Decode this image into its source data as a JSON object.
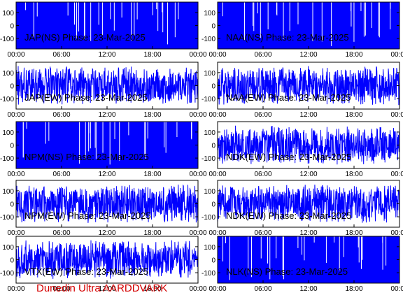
{
  "footer": "Dunedin Ultra AARDDVARK",
  "colors": {
    "trace": "#0000ff",
    "axis": "#000000",
    "footer": "#d40000"
  },
  "chart_data": [
    {
      "type": "line",
      "title": "JAP(NS) Phase: 23-Mar-2025",
      "yticks": [
        100,
        0,
        -100
      ],
      "ylim": [
        -180,
        180
      ],
      "xticks": [
        "00:00",
        "06:00",
        "12:00",
        "18:00",
        "00:00"
      ],
      "xlim_hours": [
        0,
        24
      ],
      "fill": "solid",
      "seed": 11
    },
    {
      "type": "line",
      "title": "NAA(NS) Phase: 23-Mar-2025",
      "yticks": [
        100,
        0,
        -100
      ],
      "ylim": [
        -180,
        180
      ],
      "xticks": [
        "00:00",
        "06:00",
        "12:00",
        "18:00",
        "00:00"
      ],
      "xlim_hours": [
        0,
        24
      ],
      "fill": "solid",
      "seed": 12
    },
    {
      "type": "line",
      "title": "JAP(EW) Phase: 23-Mar-2025",
      "yticks": [
        100,
        0,
        -100
      ],
      "ylim": [
        -180,
        180
      ],
      "xticks": [
        "00:00",
        "06:00",
        "12:00",
        "18:00",
        "00:00"
      ],
      "xlim_hours": [
        0,
        24
      ],
      "fill": "noisy",
      "seed": 21
    },
    {
      "type": "line",
      "title": "NAA(EW) Phase: 23-Mar-2025",
      "yticks": [
        100,
        0,
        -100
      ],
      "ylim": [
        -180,
        180
      ],
      "xticks": [
        "00:00",
        "06:00",
        "12:00",
        "18:00",
        "00:00"
      ],
      "xlim_hours": [
        0,
        24
      ],
      "fill": "noisy",
      "seed": 22
    },
    {
      "type": "line",
      "title": "NPM(NS) Phase: 23-Mar-2025",
      "yticks": [
        100,
        0,
        -100
      ],
      "ylim": [
        -180,
        180
      ],
      "xticks": [
        "00:00",
        "06:00",
        "12:00",
        "18:00",
        "00:00"
      ],
      "xlim_hours": [
        0,
        24
      ],
      "fill": "solid",
      "seed": 31
    },
    {
      "type": "line",
      "title": "NDK(EW) Phase: 23-Mar-2025",
      "yticks": [
        100,
        0,
        -100
      ],
      "ylim": [
        -180,
        180
      ],
      "xticks": [
        "00:00",
        "06:00",
        "12:00",
        "18:00",
        "00:00"
      ],
      "xlim_hours": [
        0,
        24
      ],
      "fill": "noisy",
      "seed": 32
    },
    {
      "type": "line",
      "title": "NPM(EW) Phase: 23-Mar-2025",
      "yticks": [
        100,
        0,
        -100
      ],
      "ylim": [
        -180,
        180
      ],
      "xticks": [
        "00:00",
        "06:00",
        "12:00",
        "18:00",
        "00:00"
      ],
      "xlim_hours": [
        0,
        24
      ],
      "fill": "noisy",
      "seed": 41
    },
    {
      "type": "line",
      "title": "NDK(EW) Phase: 23-Mar-2025",
      "yticks": [
        100,
        0,
        -100
      ],
      "ylim": [
        -180,
        180
      ],
      "xticks": [
        "00:00",
        "06:00",
        "12:00",
        "18:00",
        "00:00"
      ],
      "xlim_hours": [
        0,
        24
      ],
      "fill": "noisy",
      "seed": 42
    },
    {
      "type": "line",
      "title": "VTX(EW) Phase: 23-Mar-2025",
      "yticks": [
        100,
        0,
        -100
      ],
      "ylim": [
        -180,
        180
      ],
      "xticks": [
        "00:00",
        "06:00",
        "12:00",
        "18:00",
        "00:00"
      ],
      "xlim_hours": [
        0,
        24
      ],
      "fill": "noisy",
      "seed": 51
    },
    {
      "type": "line",
      "title": "NLK(NS) Phase: 23-Mar-2025",
      "yticks": [
        100,
        0,
        -100
      ],
      "ylim": [
        -180,
        180
      ],
      "xticks": [
        "00:00",
        "06:00",
        "12:00",
        "18:00",
        "00:00"
      ],
      "xlim_hours": [
        0,
        24
      ],
      "fill": "solid",
      "seed": 52
    }
  ]
}
